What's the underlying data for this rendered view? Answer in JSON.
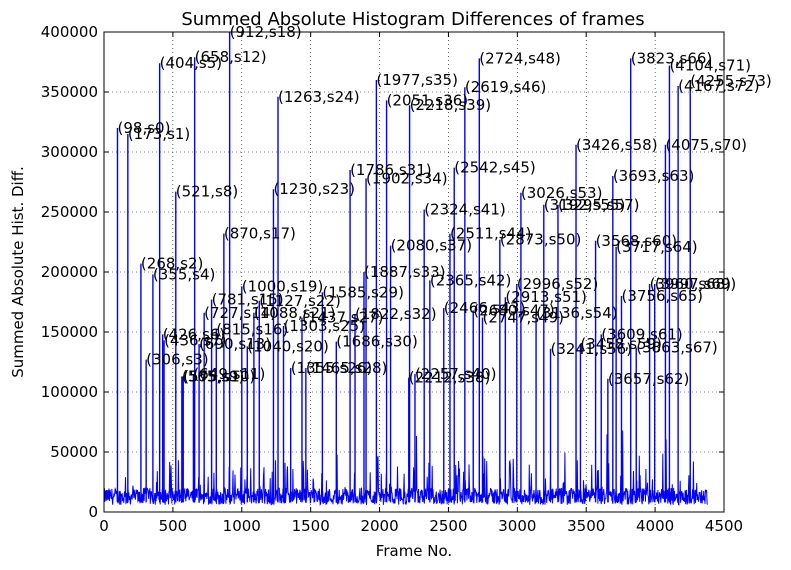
{
  "chart_data": {
    "type": "line",
    "title": "Summed Absolute Histogram Differences of frames",
    "xlabel": "Frame No.",
    "ylabel": "Summed Absolute Hist. Diff.",
    "xlim": [
      0,
      4500
    ],
    "ylim": [
      0,
      400000
    ],
    "xticks": [
      0,
      500,
      1000,
      1500,
      2000,
      2500,
      3000,
      3500,
      4000,
      4500
    ],
    "yticks": [
      0,
      50000,
      100000,
      150000,
      200000,
      250000,
      300000,
      350000,
      400000
    ],
    "xtick_labels": [
      "0",
      "500",
      "1000",
      "1500",
      "2000",
      "2500",
      "3000",
      "3500",
      "4000",
      "4500"
    ],
    "ytick_labels": [
      "0",
      "50000",
      "100000",
      "150000",
      "200000",
      "250000",
      "300000",
      "350000",
      "400000"
    ],
    "grid": true,
    "line_color": "#0000ff",
    "frame_range": [
      0,
      4380
    ],
    "peaks": [
      {
        "x": 98,
        "y": 320000,
        "label": "(98,s0)"
      },
      {
        "x": 173,
        "y": 315000,
        "label": "(173,s1)"
      },
      {
        "x": 268,
        "y": 207000,
        "label": "(268,s2)"
      },
      {
        "x": 306,
        "y": 127000,
        "label": "(306,s3)"
      },
      {
        "x": 355,
        "y": 198000,
        "label": "(355,s4)"
      },
      {
        "x": 404,
        "y": 374000,
        "label": "(404,s5)"
      },
      {
        "x": 426,
        "y": 148000,
        "label": "(426,s6)"
      },
      {
        "x": 436,
        "y": 143000,
        "label": "(436,s7)"
      },
      {
        "x": 521,
        "y": 267000,
        "label": "(521,s8)"
      },
      {
        "x": 565,
        "y": 113000,
        "label": "(565,s9)"
      },
      {
        "x": 575,
        "y": 113000,
        "label": "(575,s10)"
      },
      {
        "x": 649,
        "y": 115000,
        "label": "(649,s11)"
      },
      {
        "x": 658,
        "y": 379000,
        "label": "(658,s12)"
      },
      {
        "x": 690,
        "y": 140000,
        "label": "(690,s13)"
      },
      {
        "x": 727,
        "y": 166000,
        "label": "(727,s14)"
      },
      {
        "x": 781,
        "y": 177000,
        "label": "(781,s15)"
      },
      {
        "x": 815,
        "y": 152000,
        "label": "(815,s16)"
      },
      {
        "x": 870,
        "y": 232000,
        "label": "(870,s17)"
      },
      {
        "x": 912,
        "y": 400000,
        "label": "(912,s18)"
      },
      {
        "x": 1000,
        "y": 188000,
        "label": "(1000,s19)"
      },
      {
        "x": 1040,
        "y": 138000,
        "label": "(1040,s20)"
      },
      {
        "x": 1088,
        "y": 166000,
        "label": "(1088,s21)"
      },
      {
        "x": 1127,
        "y": 176000,
        "label": "(1127,s22)"
      },
      {
        "x": 1230,
        "y": 269000,
        "label": "(1230,s23)"
      },
      {
        "x": 1263,
        "y": 346000,
        "label": "(1263,s24)"
      },
      {
        "x": 1303,
        "y": 155000,
        "label": "(1303,s25)"
      },
      {
        "x": 1355,
        "y": 120000,
        "label": "(1355,s26)"
      },
      {
        "x": 1437,
        "y": 162000,
        "label": "(1437,s27)"
      },
      {
        "x": 1465,
        "y": 120000,
        "label": "(1465,s28)"
      },
      {
        "x": 1585,
        "y": 183000,
        "label": "(1585,s29)"
      },
      {
        "x": 1686,
        "y": 142000,
        "label": "(1686,s30)"
      },
      {
        "x": 1786,
        "y": 285000,
        "label": "(1786,s31)"
      },
      {
        "x": 1822,
        "y": 165000,
        "label": "(1822,s32)"
      },
      {
        "x": 1887,
        "y": 200000,
        "label": "(1887,s33)"
      },
      {
        "x": 1902,
        "y": 278000,
        "label": "(1902,s34)"
      },
      {
        "x": 1977,
        "y": 360000,
        "label": "(1977,s35)"
      },
      {
        "x": 2051,
        "y": 343000,
        "label": "(2051,s36)"
      },
      {
        "x": 2080,
        "y": 222000,
        "label": "(2080,s37)"
      },
      {
        "x": 2212,
        "y": 112000,
        "label": "(2212,s38)"
      },
      {
        "x": 2218,
        "y": 339000,
        "label": "(2218,s39)"
      },
      {
        "x": 2257,
        "y": 115000,
        "label": "(2257,s40)"
      },
      {
        "x": 2324,
        "y": 252000,
        "label": "(2324,s41)"
      },
      {
        "x": 2365,
        "y": 193000,
        "label": "(2365,s42)"
      },
      {
        "x": 2466,
        "y": 170000,
        "label": "(2466,s43)"
      },
      {
        "x": 2511,
        "y": 232000,
        "label": "(2511,s44)"
      },
      {
        "x": 2542,
        "y": 287000,
        "label": "(2542,s45)"
      },
      {
        "x": 2619,
        "y": 354000,
        "label": "(2619,s46)"
      },
      {
        "x": 2680,
        "y": 168000,
        "label": "(2680,s47)"
      },
      {
        "x": 2724,
        "y": 378000,
        "label": "(2724,s48)"
      },
      {
        "x": 2747,
        "y": 162000,
        "label": "(2747,s49)"
      },
      {
        "x": 2873,
        "y": 227000,
        "label": "(2873,s50)"
      },
      {
        "x": 2913,
        "y": 179000,
        "label": "(2913,s51)"
      },
      {
        "x": 2996,
        "y": 190000,
        "label": "(2996,s52)"
      },
      {
        "x": 3026,
        "y": 266000,
        "label": "(3026,s53)"
      },
      {
        "x": 3136,
        "y": 166000,
        "label": "(3136,s54)"
      },
      {
        "x": 3192,
        "y": 256000,
        "label": "(3192,s55)"
      },
      {
        "x": 3241,
        "y": 136000,
        "label": "(3241,s56)"
      },
      {
        "x": 3295,
        "y": 256000,
        "label": "(3295,s57)"
      },
      {
        "x": 3426,
        "y": 306000,
        "label": "(3426,s58)"
      },
      {
        "x": 3458,
        "y": 140000,
        "label": "(3458,s59)"
      },
      {
        "x": 3568,
        "y": 226000,
        "label": "(3568,s60)"
      },
      {
        "x": 3609,
        "y": 148000,
        "label": "(3609,s61)"
      },
      {
        "x": 3657,
        "y": 111000,
        "label": "(3657,s62)"
      },
      {
        "x": 3693,
        "y": 280000,
        "label": "(3693,s63)"
      },
      {
        "x": 3717,
        "y": 221000,
        "label": "(3717,s64)"
      },
      {
        "x": 3756,
        "y": 180000,
        "label": "(3756,s65)"
      },
      {
        "x": 3823,
        "y": 378000,
        "label": "(3823,s66)"
      },
      {
        "x": 3863,
        "y": 137000,
        "label": "(3863,s67)"
      },
      {
        "x": 3960,
        "y": 190000,
        "label": "(3960,s68)"
      },
      {
        "x": 3997,
        "y": 190000,
        "label": "(3997,s69)"
      },
      {
        "x": 4075,
        "y": 306000,
        "label": "(4075,s70)"
      },
      {
        "x": 4104,
        "y": 372000,
        "label": "(4104,s71)"
      },
      {
        "x": 4167,
        "y": 355000,
        "label": "(4167,s72)"
      },
      {
        "x": 4255,
        "y": 359000,
        "label": "(4255,s73)"
      }
    ]
  }
}
